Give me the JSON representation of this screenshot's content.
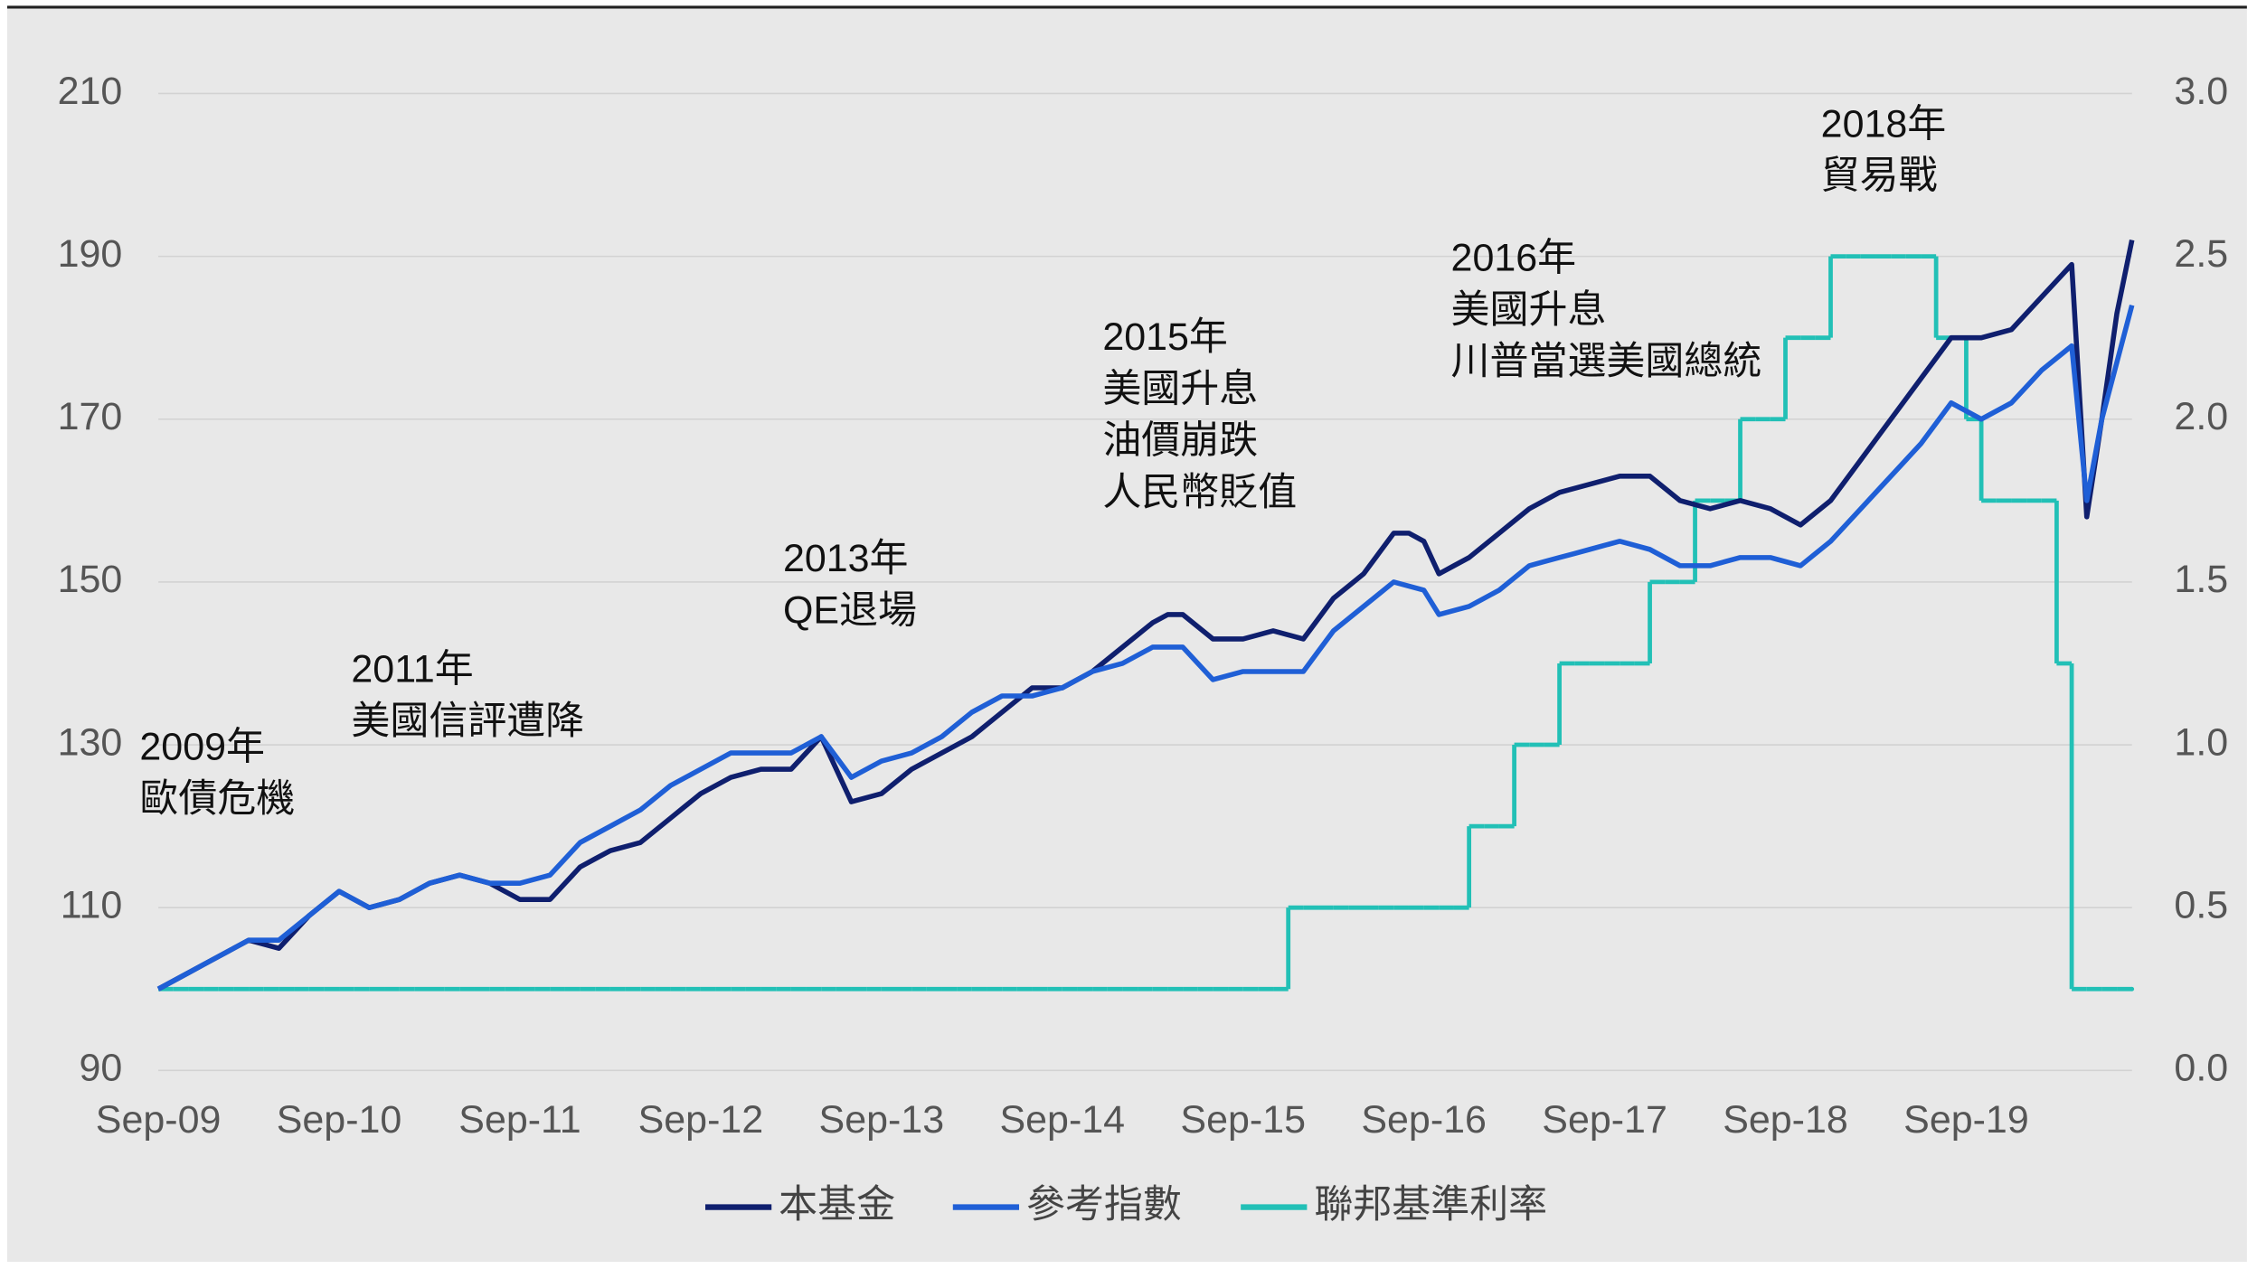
{
  "chart_data": {
    "type": "line",
    "annotations": [
      [
        "2009年",
        "歐債危機"
      ],
      [
        "2011年",
        "美國信評遭降"
      ],
      [
        "2013年",
        "QE退場"
      ],
      [
        "2015年",
        "美國升息",
        "油價崩跌",
        "人民幣貶值"
      ],
      [
        "2016年",
        "美國升息",
        "川普當選美國總統"
      ],
      [
        "2018年",
        "貿易戰"
      ]
    ],
    "categories": [
      "Sep-09",
      null,
      null,
      null,
      null,
      null,
      null,
      null,
      null,
      null,
      null,
      null,
      "Sep-10",
      null,
      null,
      null,
      null,
      null,
      null,
      null,
      null,
      null,
      null,
      null,
      "Sep-11",
      null,
      null,
      null,
      null,
      null,
      null,
      null,
      null,
      null,
      null,
      null,
      "Sep-12",
      null,
      null,
      null,
      null,
      null,
      null,
      null,
      null,
      null,
      null,
      null,
      "Sep-13",
      null,
      null,
      null,
      null,
      null,
      null,
      null,
      null,
      null,
      null,
      null,
      "Sep-14",
      null,
      null,
      null,
      null,
      null,
      null,
      null,
      null,
      null,
      null,
      null,
      "Sep-15",
      null,
      null,
      null,
      null,
      null,
      null,
      null,
      null,
      null,
      null,
      null,
      "Sep-16",
      null,
      null,
      null,
      null,
      null,
      null,
      null,
      null,
      null,
      null,
      null,
      "Sep-17",
      null,
      null,
      null,
      null,
      null,
      null,
      null,
      null,
      null,
      null,
      null,
      "Sep-18",
      null,
      null,
      null,
      null,
      null,
      null,
      null,
      null,
      null,
      null,
      null,
      "Sep-19",
      null,
      null,
      null,
      null,
      null,
      null,
      null,
      null,
      null,
      null,
      null
    ],
    "series": [
      {
        "name": "本基金",
        "color": "#0f1f6e",
        "values": [
          100,
          101,
          102,
          103,
          104,
          105,
          106,
          105.5,
          105,
          107,
          109,
          110.5,
          112,
          111,
          110,
          110.5,
          111,
          112,
          113,
          113.5,
          114,
          113.5,
          113,
          112,
          111,
          111,
          111,
          113,
          115,
          116,
          117,
          117.5,
          118,
          119.5,
          121,
          122.5,
          124,
          125,
          126,
          126.5,
          127,
          127,
          127,
          129,
          131,
          127,
          123,
          123.5,
          124,
          125.5,
          127,
          128,
          129,
          130,
          131,
          132.5,
          134,
          135.5,
          137,
          137,
          137,
          138,
          139,
          140.5,
          142,
          143.5,
          145,
          146,
          146,
          144.5,
          143,
          143,
          143,
          143.5,
          144,
          143.5,
          143,
          145.5,
          148,
          149.5,
          151,
          153.5,
          156,
          156,
          155,
          151,
          152,
          153,
          154.5,
          156,
          157.5,
          159,
          160,
          161,
          161.5,
          162,
          162.5,
          163,
          163,
          163,
          161.5,
          160,
          159.5,
          159,
          159.5,
          160,
          159.5,
          159,
          158,
          157,
          158.5,
          160,
          162.5,
          165,
          167.5,
          170,
          172.5,
          175,
          177.5,
          180,
          180,
          180,
          180.5,
          181,
          183,
          185,
          187,
          189,
          158,
          170,
          183,
          192
        ]
      },
      {
        "name": "參考指數",
        "color": "#1f5fd6",
        "values": [
          100,
          101,
          102,
          103,
          104,
          105,
          106,
          106,
          106,
          107.5,
          109,
          110.5,
          112,
          111,
          110,
          110.5,
          111,
          112,
          113,
          113.5,
          114,
          113.5,
          113,
          113,
          113,
          113.5,
          114,
          116,
          118,
          119,
          120,
          121,
          122,
          123.5,
          125,
          126,
          127,
          128,
          129,
          129,
          129,
          129,
          129,
          130,
          131,
          128.5,
          126,
          127,
          128,
          128.5,
          129,
          130,
          131,
          132.5,
          134,
          135,
          136,
          136,
          136,
          136.5,
          137,
          138,
          139,
          139.5,
          140,
          141,
          142,
          142,
          142,
          140,
          138,
          138.5,
          139,
          139,
          139,
          139,
          139,
          141.5,
          144,
          145.5,
          147,
          148.5,
          150,
          149.5,
          149,
          146,
          146.5,
          147,
          148,
          149,
          150.5,
          152,
          152.5,
          153,
          153.5,
          154,
          154.5,
          155,
          154.5,
          154,
          153,
          152,
          152,
          152,
          152.5,
          153,
          153,
          153,
          152.5,
          152,
          153.5,
          155,
          157,
          159,
          161,
          163,
          165,
          167,
          169.5,
          172,
          171,
          170,
          171,
          172,
          174,
          176,
          177.5,
          179,
          160,
          170,
          177,
          184
        ]
      },
      {
        "name": "聯邦基準利率",
        "color": "#22c0b6",
        "axis": "y2",
        "step": true,
        "values": [
          0.25,
          0.25,
          0.25,
          0.25,
          0.25,
          0.25,
          0.25,
          0.25,
          0.25,
          0.25,
          0.25,
          0.25,
          0.25,
          0.25,
          0.25,
          0.25,
          0.25,
          0.25,
          0.25,
          0.25,
          0.25,
          0.25,
          0.25,
          0.25,
          0.25,
          0.25,
          0.25,
          0.25,
          0.25,
          0.25,
          0.25,
          0.25,
          0.25,
          0.25,
          0.25,
          0.25,
          0.25,
          0.25,
          0.25,
          0.25,
          0.25,
          0.25,
          0.25,
          0.25,
          0.25,
          0.25,
          0.25,
          0.25,
          0.25,
          0.25,
          0.25,
          0.25,
          0.25,
          0.25,
          0.25,
          0.25,
          0.25,
          0.25,
          0.25,
          0.25,
          0.25,
          0.25,
          0.25,
          0.25,
          0.25,
          0.25,
          0.25,
          0.25,
          0.25,
          0.25,
          0.25,
          0.25,
          0.25,
          0.25,
          0.25,
          0.5,
          0.5,
          0.5,
          0.5,
          0.5,
          0.5,
          0.5,
          0.5,
          0.5,
          0.5,
          0.5,
          0.5,
          0.75,
          0.75,
          0.75,
          1.0,
          1.0,
          1.0,
          1.25,
          1.25,
          1.25,
          1.25,
          1.25,
          1.25,
          1.5,
          1.5,
          1.5,
          1.75,
          1.75,
          1.75,
          2.0,
          2.0,
          2.0,
          2.25,
          2.25,
          2.25,
          2.5,
          2.5,
          2.5,
          2.5,
          2.5,
          2.5,
          2.5,
          2.25,
          2.25,
          2.0,
          1.75,
          1.75,
          1.75,
          1.75,
          1.75,
          1.25,
          0.25,
          0.25,
          0.25,
          0.25,
          0.25
        ]
      }
    ],
    "ylim": [
      90,
      210
    ],
    "yticks": [
      90,
      110,
      130,
      150,
      170,
      190,
      210
    ],
    "y2lim": [
      0,
      3
    ],
    "y2ticks": [
      {
        "value": 0,
        "label": "0.0"
      },
      0.5,
      {
        "value": 1,
        "label": "1.0"
      },
      1.5,
      {
        "value": 2,
        "label": "2.0"
      },
      2.5,
      {
        "value": 3,
        "label": "3.0"
      }
    ],
    "grid": true,
    "legend": "bottom"
  }
}
